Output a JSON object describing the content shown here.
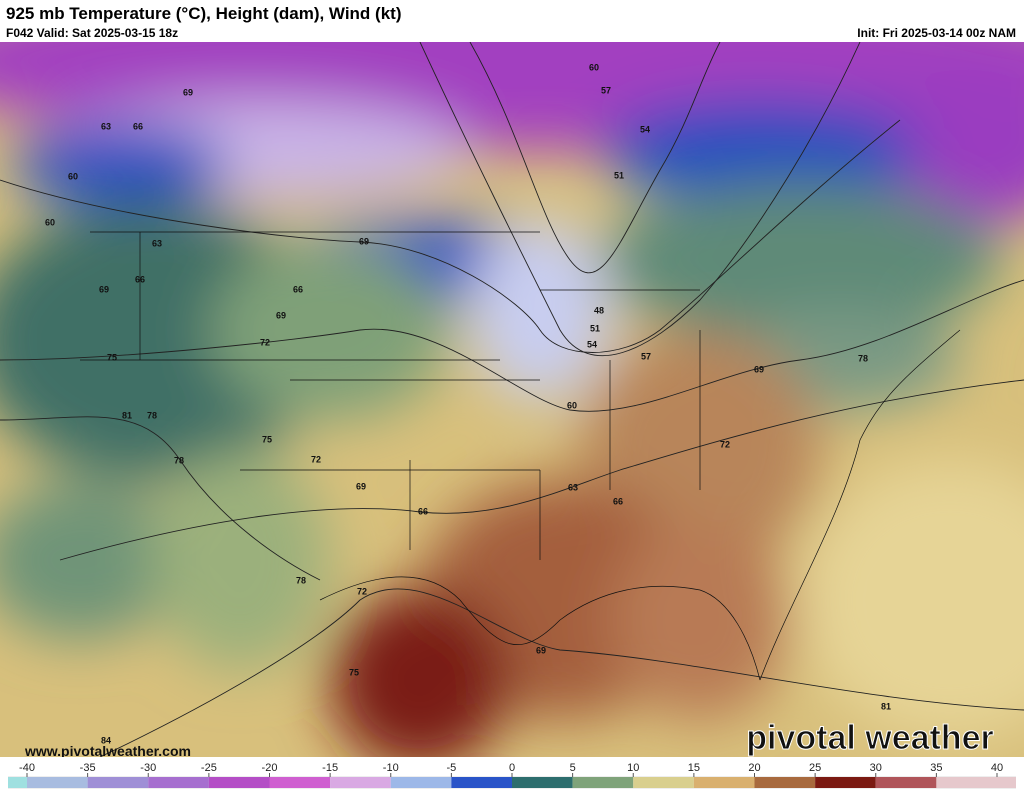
{
  "header": {
    "title": "925 mb Temperature (°C), Height (dam), Wind (kt)",
    "valid": "F042 Valid: Sat 2025-03-15 18z",
    "init": "Init: Fri 2025-03-14 00z NAM"
  },
  "map": {
    "contour_labels": [
      69,
      63,
      66,
      60,
      60,
      63,
      66,
      69,
      66,
      69,
      72,
      75,
      81,
      78,
      78,
      75,
      72,
      69,
      66,
      78,
      72,
      75,
      84,
      69,
      60,
      57,
      54,
      51,
      48,
      51,
      54,
      57,
      60,
      63,
      66,
      69,
      72,
      69,
      78,
      81
    ],
    "website": "www.pivotalweather.com",
    "watermark": "pivotal weather"
  },
  "colorbar": {
    "ticks": [
      -40,
      -35,
      -30,
      -25,
      -20,
      -15,
      -10,
      -5,
      0,
      5,
      10,
      15,
      20,
      25,
      30,
      35,
      40
    ],
    "colors": [
      "#9fe0e0",
      "#a8bce0",
      "#9f8fd6",
      "#a66fcf",
      "#b44ec6",
      "#cf5fd0",
      "#d9a9e3",
      "#9db8e8",
      "#2a54c8",
      "#2d6e6e",
      "#7fa37a",
      "#d9cf8e",
      "#d9b06f",
      "#a86a3e",
      "#7b1a12",
      "#b0555a",
      "#e6c8cc"
    ]
  }
}
